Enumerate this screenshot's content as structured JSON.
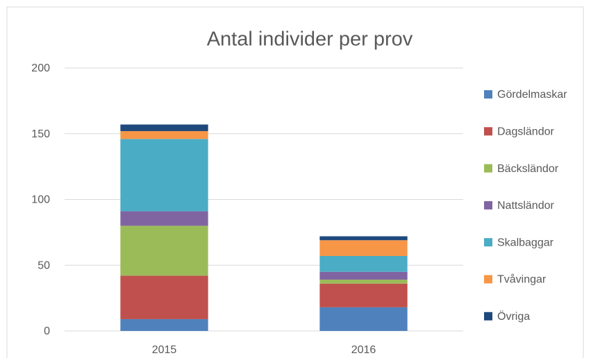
{
  "chart_data": {
    "type": "stacked-bar",
    "title": "Antal individer per prov",
    "categories": [
      "2015",
      "2016"
    ],
    "series": [
      {
        "name": "Gördelmaskar",
        "color": "#4f81bd",
        "values": [
          9,
          18
        ]
      },
      {
        "name": "Dagsländor",
        "color": "#c0504d",
        "values": [
          33,
          18
        ]
      },
      {
        "name": "Bäcksländor",
        "color": "#9bbb59",
        "values": [
          38,
          3
        ]
      },
      {
        "name": "Nattsländor",
        "color": "#8064a2",
        "values": [
          11,
          6
        ]
      },
      {
        "name": "Skalbaggar",
        "color": "#4bacc6",
        "values": [
          55,
          12
        ]
      },
      {
        "name": "Tvåvingar",
        "color": "#f79646",
        "values": [
          6,
          12
        ]
      },
      {
        "name": "Övriga",
        "color": "#1f497d",
        "values": [
          5,
          3
        ]
      }
    ],
    "ylim": [
      0,
      200
    ],
    "yticks": [
      0,
      50,
      100,
      150,
      200
    ],
    "grid": true,
    "legend": "right"
  }
}
